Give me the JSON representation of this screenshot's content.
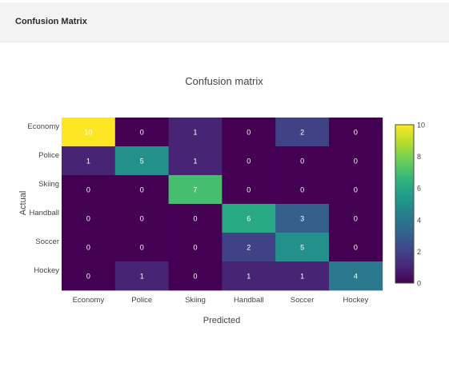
{
  "header": {
    "title": "Confusion Matrix"
  },
  "chart_data": {
    "type": "heatmap",
    "title": "Confusion matrix",
    "xlabel": "Predicted",
    "ylabel": "Actual",
    "x_categories": [
      "Economy",
      "Police",
      "Skiing",
      "Handball",
      "Soccer",
      "Hockey"
    ],
    "y_categories": [
      "Economy",
      "Police",
      "Skiing",
      "Handball",
      "Soccer",
      "Hockey"
    ],
    "values": [
      [
        10,
        0,
        1,
        0,
        2,
        0
      ],
      [
        1,
        5,
        1,
        0,
        0,
        0
      ],
      [
        0,
        0,
        7,
        0,
        0,
        0
      ],
      [
        0,
        0,
        0,
        6,
        3,
        0
      ],
      [
        0,
        0,
        0,
        2,
        5,
        0
      ],
      [
        0,
        1,
        0,
        1,
        1,
        4
      ]
    ],
    "colorscale": "viridis",
    "zrange": [
      0,
      10
    ],
    "colorbar_ticks": [
      0,
      2,
      4,
      6,
      8,
      10
    ]
  }
}
